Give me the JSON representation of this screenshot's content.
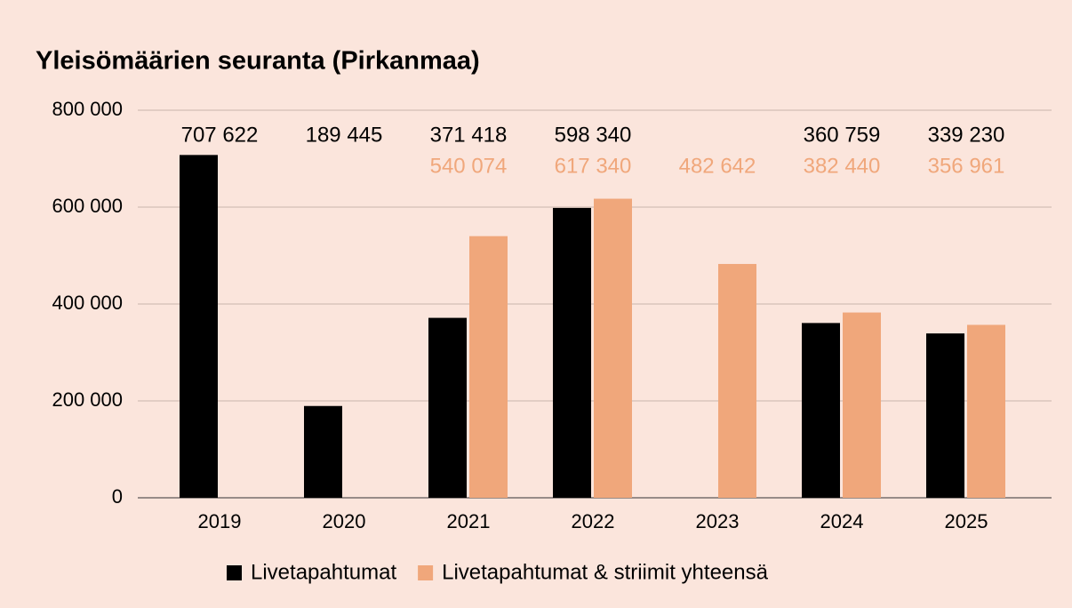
{
  "chart_data": {
    "type": "bar",
    "title": "Yleisömäärien seuranta (Pirkanmaa)",
    "categories": [
      "2019",
      "2020",
      "2021",
      "2022",
      "2023",
      "2024",
      "2025"
    ],
    "series": [
      {
        "name": "Livetapahtumat",
        "color": "#000000",
        "values": [
          707622,
          189445,
          371418,
          598340,
          null,
          360759,
          339230
        ],
        "value_labels": [
          "707 622",
          "189 445",
          "371 418",
          "598 340",
          null,
          "360 759",
          "339 230"
        ]
      },
      {
        "name": "Livetapahtumat & striimit yhteensä",
        "color": "#f0a77b",
        "values": [
          null,
          null,
          540074,
          617340,
          482642,
          382440,
          356961
        ],
        "value_labels": [
          null,
          null,
          "540 074",
          "617 340",
          "482 642",
          "382 440",
          "356 961"
        ]
      }
    ],
    "ylim": [
      0,
      800000
    ],
    "yticks": [
      0,
      {
        "value": 200000,
        "label": "200 000"
      },
      {
        "value": 400000,
        "label": "400 000"
      },
      {
        "value": 600000,
        "label": "600 000"
      },
      {
        "value": 800000,
        "label": "800 000"
      }
    ],
    "grid": true,
    "legend": "bottom"
  }
}
